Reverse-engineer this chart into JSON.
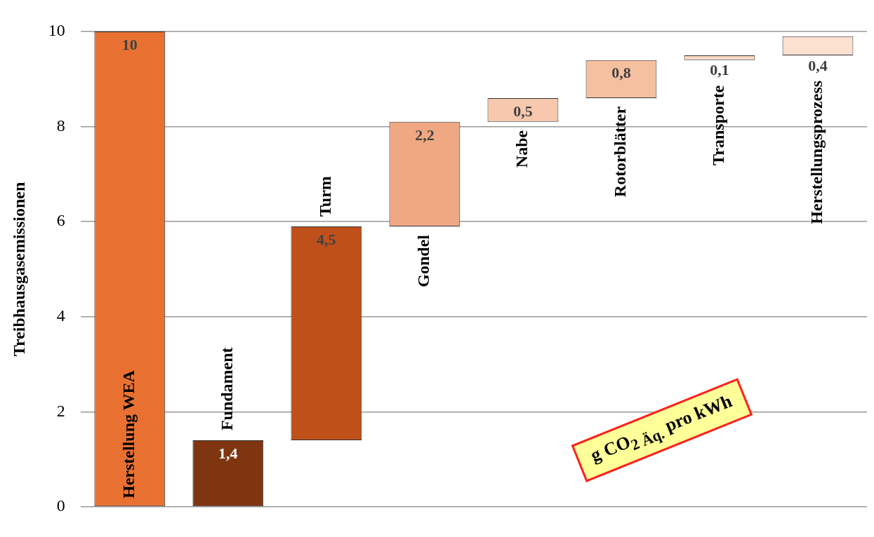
{
  "chart_data": {
    "type": "bar",
    "ylabel": "Treibhausgasemissionen",
    "categories": [
      "Herstellung WEA",
      "Fundament",
      "Turm",
      "Gondel",
      "Nabe",
      "Rotorblätter",
      "Transporte",
      "Herstellungsprozess"
    ],
    "values": [
      10,
      1.4,
      4.5,
      2.2,
      0.5,
      0.8,
      0.1,
      0.4
    ],
    "base": [
      0,
      0,
      1.4,
      5.9,
      8.1,
      8.6,
      9.4,
      9.5
    ],
    "value_labels": [
      "10",
      "1,4",
      "4,5",
      "2,2",
      "0,5",
      "0,8",
      "0,1",
      "0,4"
    ],
    "colors": [
      "#e87132",
      "#7f3510",
      "#c0501a",
      "#f0a882",
      "#f7c8ae",
      "#f5c0a0",
      "#fbd9c5",
      "#fce0d0"
    ],
    "ylim": [
      0,
      10
    ],
    "yticks": [
      0,
      2,
      4,
      6,
      8,
      10
    ],
    "grid": "y",
    "tick_labels": "y",
    "legend": false,
    "annotations": [
      "g CO$_{2 Äq.}$ pro kWh"
    ]
  }
}
